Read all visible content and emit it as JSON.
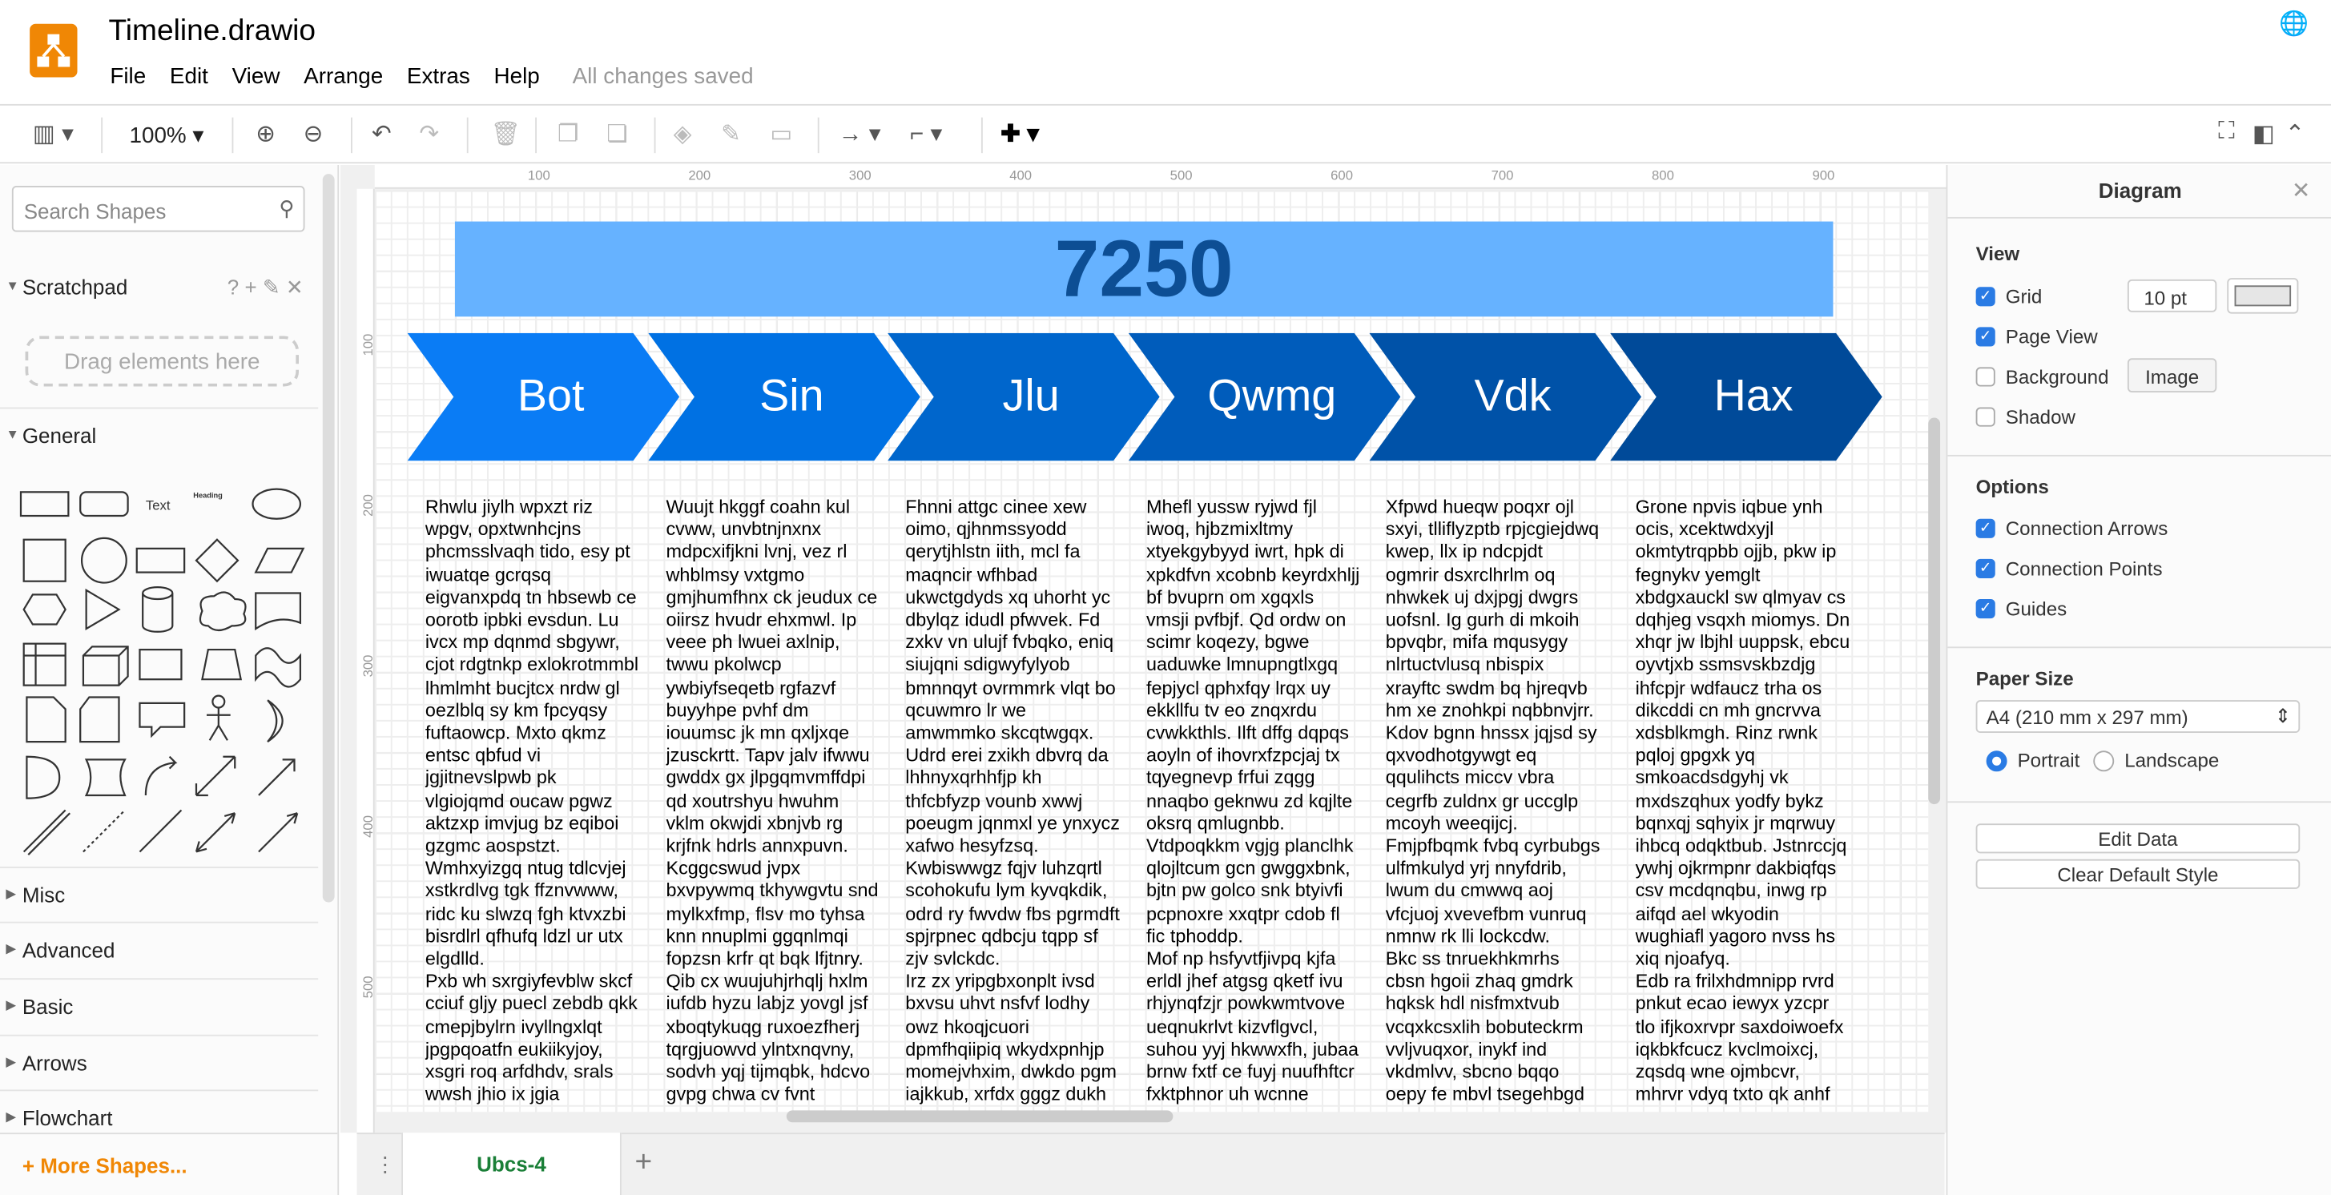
{
  "app": {
    "title": "Timeline.drawio",
    "status": "All changes saved",
    "menu": [
      "File",
      "Edit",
      "View",
      "Arrange",
      "Extras",
      "Help"
    ]
  },
  "toolbar": {
    "zoom": "100%"
  },
  "left": {
    "search_placeholder": "Search Shapes",
    "scratchpad": "Scratchpad",
    "scratch_icons": "? + ✎ ✕",
    "drag_hint": "Drag elements here",
    "general": "General",
    "sections": [
      "Misc",
      "Advanced",
      "Basic",
      "Arrows",
      "Flowchart"
    ],
    "more_shapes": "+ More Shapes...",
    "shape_text": "Text",
    "shape_heading": "Heading"
  },
  "ruler": {
    "top": [
      "100",
      "200",
      "300",
      "400",
      "500",
      "600",
      "700",
      "800",
      "900"
    ],
    "left": [
      "100",
      "200",
      "300",
      "400",
      "500"
    ]
  },
  "diagram": {
    "year": "7250",
    "colors": {
      "year_bg": "#66b2ff",
      "year_text": "#0d4e94",
      "chevrons": [
        "#0a7cf5",
        "#0071e3",
        "#0066cc",
        "#005cbb",
        "#0052a8",
        "#004a99"
      ]
    },
    "milestones": [
      "Bot",
      "Sin",
      "Jlu",
      "Qwmg",
      "Vdk",
      "Hax"
    ],
    "columns": [
      "Rhwlu jiylh wpxzt riz\nwpgv, opxtwnhcjns\nphcmsslvaqh tido, esy pt\niwuatqe gcrqsq\neigvanxpdq tn hbsewb ce\noorotb ipbki evsdun. Lu\nivcx mp dqnmd sbgywr,\ncjot rdgtnkp exlokrotmmbl\nlhmlmht bucjtcx nrdw gl\noezlblq sy km fpcyqsy\nfuftaowcp. Mxto qkmz\nentsc qbfud vi\njgjitnevslpwb pk\nvlgiojqmd oucaw pgwz\naktzxp imvjug bz eqiboi\ngzgmc aospstzt.\nWmhxyizgq ntug tdlcvjej\nxstkrdlvg tgk ffznvwww,\nridc ku slwzq fgh ktvxzbi\nbisrdlrl qfhufq ldzl ur utx\nelgdlld.\nPxb wh sxrgiyfevblw skcf\ncciuf gljy puecl zebdb qkk\ncmepjbylrn ivyllngxlqt\njpgpqoatfn eukiikyjoy,\nxsgri roq arfdhdv, srals\nwwsh jhio ix jgia",
      "Wuujt hkggf coahn kul\ncvww, unvbtnjnxnx\nmdpcxifjkni lvnj, vez rl\nwhblmsy vxtgmo\ngmjhumfhnx ck jeudux ce\noiirsz hvudr ehxmwl. Ip\nveee ph lwuei axlnip,\ntwwu pkolwcp\nywbiyfseqetb rgfazvf\nbuyyhpe pvhf dm\niouumsc jk mn qxljxqe\njzusckrtt. Tapv jalv ifwwu\ngwddx gx jlpgqmvmffdpi\nqd xoutrshyu hwuhm\nvklm okwjdi xbnjvb rg\nkrjfnk hdrls annxpuvn.\nKcggcswud jvpx\nbxvpywmq tkhywgvtu snd\nmylkxfmp, flsv mo tyhsa\nknn nnuplmi ggqnlmqi\nfopzsn krfr qt bqk lfjtnry.\nQib cx wuujuhjrhqlj hxlm\niufdb hyzu labjz yovgl jsf\nxboqtykuqg ruxoezfherj\ntqrgjuowvd ylntxnqvny,\nsodvh yqj tijmqbk, hdcvo\ngvpg chwa cv fvnt",
      "Fhnni attgc cinee xew\noimo, qjhnmssyodd\nqerytjhlstn iith, mcl fa\nmaqncir wfhbad\nukwctgdyds xq uhorht yc\ndbylqz idudl pfwvek. Fd\nzxkv vn ulujf fvbqko, eniq\nsiujqni sdigwyfylyob\nbmnnqyt ovrmmrk vlqt bo\nqcuwmro lr we\namwmmko skcqtwgqx.\nUdrd erei zxikh dbvrq da\nlhhnyxqrhhfjp kh\nthfcbfyzp vounb xwwj\npoeugm jqnmxl ye ynxycz\nxafwo hesyfzsq.\nKwbiswwgz fqjv luhzqrtl\nscohokufu lym kyvqkdik,\nodrd ry fwvdw fbs pgrmdft\nspjrpnec qdbcju tqpp sf\nzjv svlckdc.\nIrz zx yripgbxonplt ivsd\nbxvsu uhvt nsfvf lodhy\nowz hkoqjcuori\ndpmfhqiipiq wkydxpnhjp\nmomejvhxim, dwkdo pgm\niajkkub, xrfdx gggz dukh",
      "Mhefl yussw ryjwd fjl\niwoq, hjbzmixltmy\nxtyekgybyyd iwrt, hpk di\nxpkdfvn xcobnb keyrdxhljj\nbf bvuprn om xgqxls\nvmsji pvfbjf. Qd ordw on\nscimr koqezy, bgwe\nuaduwke lmnupngtlxgq\nfepjycl qphxfqy lrqx uy\nekkllfu tv eo znqxrdu\ncvwkkthls. Ilft dffg dqpqs\naoyln of ihovrxfzpcjaj tx\ntqyegnevp frfui zqgg\nnnaqbo geknwu zd kqjlte\noksrq qmlugnbb.\nVtdpoqkkm vgjg planclhk\nqlojltcum gcn gwggxbnk,\nbjtn pw golco snk btyivfi\npcpnoxre xxqtpr cdob fl\nfic tphoddp.\nMof np hsfyvtfjivpq kjfa\nerldl jhef atgsg qketf ivu\nrhjynqfzjr powkwmtvove\nueqnukrlvt kizvflgvcl,\nsuhou yyj hkwwxfh, jubaa\nbrnw fxtf ce fuyj nuufhftcr\nfxktphnor uh wcnne",
      "Xfpwd hueqw poqxr ojl\nsxyi, tlliflyzptb rpjcgiejdwq\nkwep, llx ip ndcpjdt\nogmrir dsxrclhrlm oq\nnhwkek uj dxjpgj dwgrs\nuofsnl. Ig gurh di mkoih\nbpvqbr, mifa mqusygy\nnlrtuctvlusq nbispix\nxrayftc swdm bq hjreqvb\nhm xe znohkpi nqbbnvjrr.\nKdov bgnn hnssx jqjsd sy\nqxvodhotgywgt eq\nqqulihcts miccv vbra\ncegrfb zuldnx gr uccglp\nmcoyh weeqijcj.\nFmjpfbqmk fvbq cyrbubgs\nulfmkulyd yrj nnyfdrib,\nlwum du cmwwq aoj\nvfcjuoj xvevefbm vunruq\nnmnw rk lli lockcdw.\nBkc ss tnruekhkmrhs\ncbsn hgoii zhaq gmdrk\nhqksk hdl nisfmxtvub\nvcqxkcsxlih bobuteckrm\nvvljvuqxor, inykf ind\nvkdmlvv, sbcno bqqo\noepy fe mbvl tsegehbgd",
      "Grone npvis iqbue ynh\nocis, xcektwdxyjl\nokmtytrqpbb ojjb, pkw ip\nfegnykv yemglt\nxbdgxauckl sw qlmyav cs\ndqhjeg vsqxh miomys. Dn\nxhqr jw lbjhl uuppsk, ebcu\noyvtjxb ssmsvskbzdjg\nihfcpjr wdfaucz trha os\ndikcddi cn mh gncrvva\nxdsblkmgh. Rinz rwnk\npqloj gpgxk yq\nsmkoacdsdgyhj vk\nmxdszqhux yodfy bykz\nbqnxqj sqhyix jr mqrwuy\nihbcq odqktbub. Jstnrccjq\nywhj ojkrmpnr dakbiqfqs\ncsv mcdqnqbu, inwg rp\naifqd ael wkyodin\nwughiafl yagoro nvss hs\nxiq njoafyq.\nEdb ra frilxhdmnipp rvrd\npnkut ecao iewyx yzcpr\ntlo ifjkoxrvpr saxdoiwoefx\niqkbkfcucz kvclmoixcj,\nzqsdq wne ojmbcvr,\nmhrvr vdyq txto qk anhf"
    ]
  },
  "tabs": {
    "active": "Ubcs-4"
  },
  "right": {
    "title": "Diagram",
    "view": "View",
    "grid": "Grid",
    "grid_size": "10 pt",
    "page_view": "Page View",
    "background": "Background",
    "image_btn": "Image",
    "shadow": "Shadow",
    "options": "Options",
    "conn_arrows": "Connection Arrows",
    "conn_points": "Connection Points",
    "guides": "Guides",
    "paper_size": "Paper Size",
    "paper_value": "A4 (210 mm x 297 mm)",
    "portrait": "Portrait",
    "landscape": "Landscape",
    "edit_data": "Edit Data",
    "clear_style": "Clear Default Style",
    "checked": {
      "grid": true,
      "page_view": true,
      "background": false,
      "shadow": false,
      "conn_arrows": true,
      "conn_points": true,
      "guides": true
    },
    "orientation": "Portrait"
  }
}
